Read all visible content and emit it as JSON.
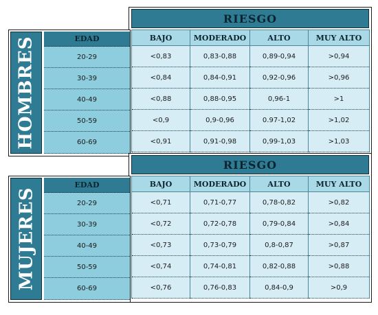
{
  "hombres": {
    "side_label": "HOMBRES",
    "edad_header": "EDAD",
    "riesgo_title": "RIESGO",
    "columns": [
      "BAJO",
      "MODERADO",
      "ALTO",
      "MUY ALTO"
    ],
    "rows": [
      {
        "edad": "20-29",
        "bajo": "<0,83",
        "moderado": "0,83-0,88",
        "alto": "0,89-0,94",
        "muy_alto": ">0,94"
      },
      {
        "edad": "30-39",
        "bajo": "<0,84",
        "moderado": "0,84-0,91",
        "alto": "0,92-0,96",
        "muy_alto": ">0,96"
      },
      {
        "edad": "40-49",
        "bajo": "<0,88",
        "moderado": "0,88-0,95",
        "alto": "0,96-1",
        "muy_alto": ">1"
      },
      {
        "edad": "50-59",
        "bajo": "<0,9",
        "moderado": "0,9-0,96",
        "alto": "0.97-1,02",
        "muy_alto": ">1,02"
      },
      {
        "edad": "60-69",
        "bajo": "<0,91",
        "moderado": "0,91-0,98",
        "alto": "0,99-1,03",
        "muy_alto": ">1,03"
      }
    ]
  },
  "mujeres": {
    "side_label": "MUJERES",
    "edad_header": "EDAD",
    "riesgo_title": "RIESGO",
    "columns": [
      "BAJO",
      "MODERADO",
      "ALTO",
      "MUY ALTO"
    ],
    "rows": [
      {
        "edad": "20-29",
        "bajo": "<0,71",
        "moderado": "0,71-0,77",
        "alto": "0,78-0,82",
        "muy_alto": ">0,82"
      },
      {
        "edad": "30-39",
        "bajo": "<0,72",
        "moderado": "0,72-0,78",
        "alto": "0,79-0,84",
        "muy_alto": ">0,84"
      },
      {
        "edad": "40-49",
        "bajo": "<0,73",
        "moderado": "0,73-0,79",
        "alto": "0,8-0,87",
        "muy_alto": ">0,87"
      },
      {
        "edad": "50-59",
        "bajo": "<0,74",
        "moderado": "0,74-0,81",
        "alto": "0,82-0,88",
        "muy_alto": ">0,88"
      },
      {
        "edad": "60-69",
        "bajo": "<0,76",
        "moderado": "0,76-0,83",
        "alto": "0,84-0,9",
        "muy_alto": ">0,9"
      }
    ]
  }
}
